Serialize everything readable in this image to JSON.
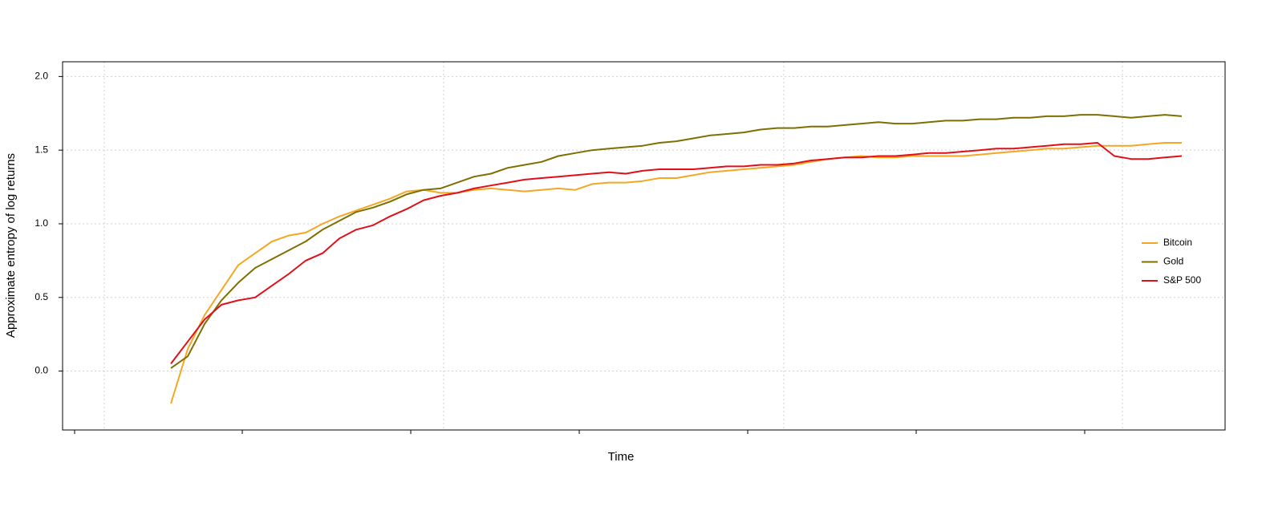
{
  "chart_data": {
    "type": "line",
    "ylabel": "Approximate entropy of log returns",
    "xlabel": "Time",
    "categories": [
      null,
      null,
      null,
      null,
      null,
      null,
      null,
      null,
      null,
      null,
      null,
      null,
      null,
      null,
      null,
      null,
      null,
      null,
      null,
      null,
      null,
      null,
      null,
      null,
      null,
      null,
      null,
      null,
      null,
      null,
      null,
      null,
      null,
      null,
      null,
      null,
      null,
      null,
      null,
      null,
      null,
      null,
      null,
      null,
      null,
      null,
      null,
      null,
      null,
      null,
      null,
      null,
      null,
      null,
      null,
      null,
      null,
      null,
      null,
      null,
      null,
      null,
      null,
      null,
      null
    ],
    "series": [
      {
        "name": "Bitcoin",
        "color": "#f5a623",
        "values": [
          null,
          null,
          null,
          null,
          -0.22,
          0.15,
          0.38,
          0.55,
          0.72,
          0.8,
          0.88,
          0.92,
          0.94,
          1.0,
          1.05,
          1.09,
          1.13,
          1.17,
          1.22,
          1.23,
          1.21,
          1.21,
          1.23,
          1.24,
          1.23,
          1.22,
          1.23,
          1.24,
          1.23,
          1.27,
          1.28,
          1.28,
          1.29,
          1.31,
          1.31,
          1.33,
          1.35,
          1.36,
          1.37,
          1.38,
          1.39,
          1.4,
          1.42,
          1.44,
          1.45,
          1.46,
          1.45,
          1.45,
          1.46,
          1.46,
          1.46,
          1.46,
          1.47,
          1.48,
          1.49,
          1.5,
          1.51,
          1.51,
          1.52,
          1.53,
          1.53,
          1.53,
          1.54,
          1.55,
          1.55
        ]
      },
      {
        "name": "Gold",
        "color": "#7f6f00",
        "values": [
          null,
          null,
          null,
          null,
          0.02,
          0.1,
          0.32,
          0.48,
          0.6,
          0.7,
          0.76,
          0.82,
          0.88,
          0.96,
          1.02,
          1.08,
          1.11,
          1.15,
          1.2,
          1.23,
          1.24,
          1.28,
          1.32,
          1.34,
          1.38,
          1.4,
          1.42,
          1.46,
          1.48,
          1.5,
          1.51,
          1.52,
          1.53,
          1.55,
          1.56,
          1.58,
          1.6,
          1.61,
          1.62,
          1.64,
          1.65,
          1.65,
          1.66,
          1.66,
          1.67,
          1.68,
          1.69,
          1.68,
          1.68,
          1.69,
          1.7,
          1.7,
          1.71,
          1.71,
          1.72,
          1.72,
          1.73,
          1.73,
          1.74,
          1.74,
          1.73,
          1.72,
          1.73,
          1.74,
          1.73
        ]
      },
      {
        "name": "S&P 500",
        "color": "#e0101a",
        "values": [
          null,
          null,
          null,
          null,
          0.05,
          0.2,
          0.35,
          0.45,
          0.48,
          0.5,
          0.58,
          0.66,
          0.75,
          0.8,
          0.9,
          0.96,
          0.99,
          1.05,
          1.1,
          1.16,
          1.19,
          1.21,
          1.24,
          1.26,
          1.28,
          1.3,
          1.31,
          1.32,
          1.33,
          1.34,
          1.35,
          1.34,
          1.36,
          1.37,
          1.37,
          1.37,
          1.38,
          1.39,
          1.39,
          1.4,
          1.4,
          1.41,
          1.43,
          1.44,
          1.45,
          1.45,
          1.46,
          1.46,
          1.47,
          1.48,
          1.48,
          1.49,
          1.5,
          1.51,
          1.51,
          1.52,
          1.53,
          1.54,
          1.54,
          1.55,
          1.46,
          1.44,
          1.44,
          1.45,
          1.46
        ]
      }
    ],
    "ylim": [
      -0.4,
      2.1
    ],
    "yticks": [
      {
        "value": 0,
        "label": "0.0"
      },
      0.5,
      {
        "value": 1,
        "label": "1.0"
      },
      1.5,
      {
        "value": 2,
        "label": "2.0"
      }
    ],
    "grid": true,
    "legend": "right"
  }
}
